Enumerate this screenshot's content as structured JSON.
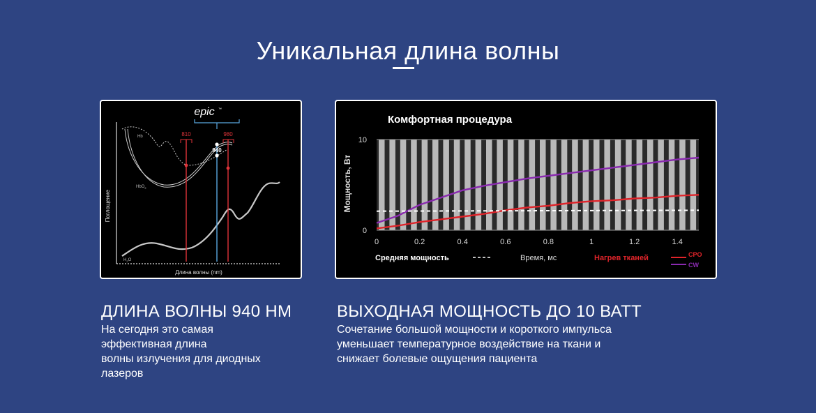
{
  "page": {
    "title": "Уникальная длина волны"
  },
  "features": [
    {
      "heading": "ДЛИНА ВОЛНЫ 940 НМ",
      "lines": [
        "На сегодня это самая",
        "эффективная длина",
        "волны излучения для диодных",
        "лазеров"
      ]
    },
    {
      "heading": "ВЫХОДНАЯ МОЩНОСТЬ ДО 10 ВАТТ",
      "lines": [
        "Сочетание большой мощности и короткого импульса",
        "уменьшает температурное воздействие на ткани и",
        "снижает болевые ощущения пациента"
      ]
    }
  ],
  "chart_data": [
    {
      "type": "line",
      "logo": "epic",
      "logo_mark": "™",
      "xlabel": "Длина волны (nm)",
      "ylabel": "Поглощение",
      "curve_labels": {
        "hb": "Hb",
        "hbo2": "HbO",
        "hbo2_sub": "2",
        "h2o": "H",
        "h2o_sub": "2",
        "h2o_tail": "O"
      },
      "markers": [
        {
          "label": "810",
          "color": "#e0343a"
        },
        {
          "label": "940",
          "color": "#5aa8e0"
        },
        {
          "label": "980",
          "color": "#e0343a"
        }
      ],
      "colors": {
        "laser_red": "#e0343a",
        "laser_blue": "#5aa8e0",
        "curve": "#cfcfcf"
      }
    },
    {
      "type": "line",
      "title": "Комфортная процедура",
      "xlabel": "Время, мс",
      "ylabel": "Мощность, Вт",
      "xlim": [
        0,
        1.5
      ],
      "ylim": [
        0,
        10
      ],
      "x_ticks": [
        "0",
        "0.2",
        "0.4",
        "0.6",
        "0.8",
        "1",
        "1.2",
        "1.4"
      ],
      "y_ticks": [
        "0",
        "10"
      ],
      "legend_items": {
        "average": "Средняя мощность",
        "heating": "Нагрев тканей",
        "cpo": "CPO",
        "cw": "CW"
      },
      "series": [
        {
          "name": "CPO",
          "color": "#e0242a",
          "x": [
            0,
            0.1,
            0.2,
            0.3,
            0.4,
            0.5,
            0.6,
            0.7,
            0.8,
            0.9,
            1.0,
            1.1,
            1.2,
            1.3,
            1.4,
            1.5
          ],
          "y": [
            0.2,
            0.5,
            0.9,
            1.2,
            1.5,
            1.8,
            2.2,
            2.5,
            2.7,
            3.0,
            3.2,
            3.3,
            3.5,
            3.6,
            3.8,
            3.9
          ]
        },
        {
          "name": "CW",
          "color": "#8a2ab0",
          "x": [
            0,
            0.1,
            0.2,
            0.3,
            0.4,
            0.5,
            0.6,
            0.7,
            0.8,
            0.9,
            1.0,
            1.1,
            1.2,
            1.3,
            1.4,
            1.5
          ],
          "y": [
            0.8,
            1.6,
            2.8,
            3.6,
            4.4,
            4.9,
            5.3,
            5.7,
            6.0,
            6.3,
            6.6,
            6.9,
            7.2,
            7.5,
            7.8,
            8.0
          ]
        },
        {
          "name": "Средняя мощность",
          "color": "#ffffff",
          "dashed": true,
          "x": [
            0,
            1.5
          ],
          "y": [
            2.1,
            2.2
          ]
        }
      ]
    }
  ]
}
